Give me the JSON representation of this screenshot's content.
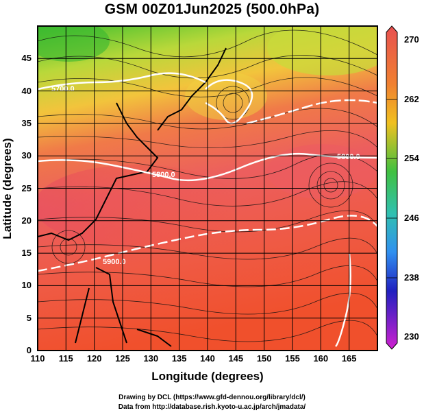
{
  "title": "GSM 00Z01Jun2025 (500.0hPa)",
  "x_axis": {
    "label": "Longitude (degrees)",
    "ticks": [
      "110",
      "115",
      "120",
      "125",
      "130",
      "135",
      "140",
      "145",
      "150",
      "155",
      "160",
      "165"
    ],
    "range": [
      110,
      170
    ]
  },
  "y_axis": {
    "label": "Latitude  (degrees)",
    "ticks": [
      "0",
      "5",
      "10",
      "15",
      "20",
      "25",
      "30",
      "35",
      "40",
      "45"
    ],
    "range": [
      0,
      50
    ]
  },
  "colorbar": {
    "labels": [
      "270",
      "262",
      "254",
      "246",
      "238",
      "230"
    ],
    "colors": [
      "#e04050",
      "#f07020",
      "#f0c020",
      "#40c040",
      "#30c0c0",
      "#3080f0",
      "#2020c0",
      "#d020d0"
    ]
  },
  "contours": [
    {
      "label": "5800.0"
    },
    {
      "label": "5800.0"
    },
    {
      "label": "5900.0"
    },
    {
      "label": "5700.0"
    }
  ],
  "credits": [
    "Drawing by DCL (https://www.gfd-dennou.org/library/dcl/)",
    "Data from http://database.rish.kyoto-u.ac.jp/arch/jmadata/"
  ]
}
